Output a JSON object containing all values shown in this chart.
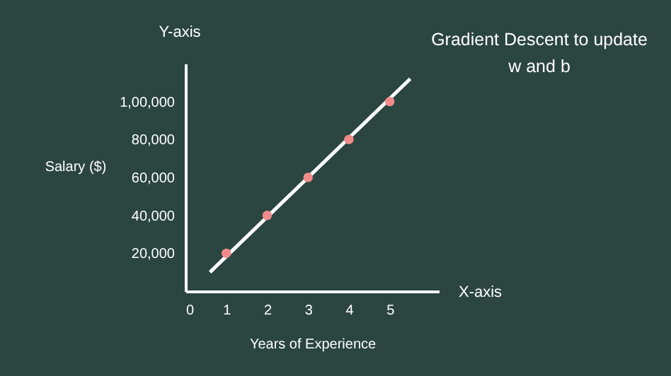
{
  "chart_data": {
    "type": "scatter",
    "title": "Gradient Descent to update\nw and b",
    "xlabel": "Years of Experience",
    "ylabel": "Salary ($)",
    "annotations": [
      "Y-axis",
      "X-axis"
    ],
    "xlim": [
      0,
      6.2
    ],
    "ylim": [
      0,
      120000
    ],
    "xticks": [
      0,
      1,
      2,
      3,
      4,
      5
    ],
    "yticks": [
      {
        "value": 20000,
        "label": "20,000"
      },
      {
        "value": 40000,
        "label": "40,000"
      },
      {
        "value": 60000,
        "label": "60,000"
      },
      {
        "value": 80000,
        "label": "80,000"
      },
      {
        "value": 100000,
        "label": "1,00,000"
      }
    ],
    "grid": false,
    "series": [
      {
        "type": "line",
        "color": "#ffffff",
        "x": [
          0.6,
          5.5
        ],
        "values": [
          10000,
          112000
        ],
        "line_style": "solid"
      },
      {
        "color": "#f08a8a",
        "marker": "circle",
        "x": [
          1,
          2,
          3,
          4,
          5
        ],
        "values": [
          20000,
          40000,
          60000,
          80000,
          100000
        ]
      }
    ]
  }
}
